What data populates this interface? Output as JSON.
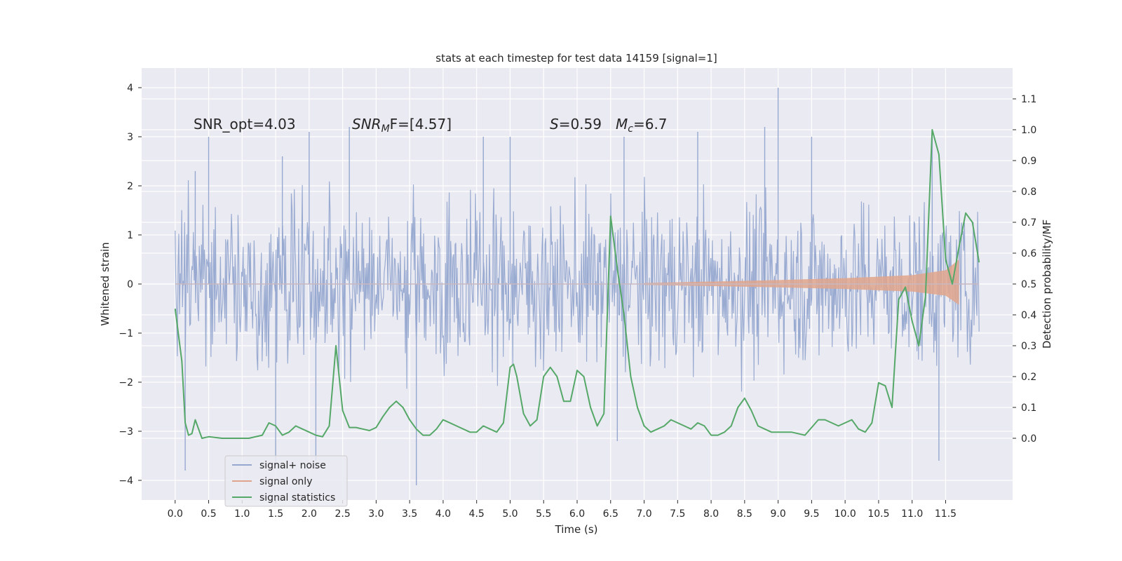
{
  "chart_data": {
    "type": "line",
    "title": "stats at each timestep for test data 14159 [signal=1]",
    "xlabel": "Time (s)",
    "ylabel": "Whitened strain",
    "ylabel_right": "Detection probability/MF",
    "xlim": [
      -0.5,
      12.5
    ],
    "ylim": [
      -4.4,
      4.4
    ],
    "ylim_right": [
      -0.2,
      1.2
    ],
    "x_ticks": [
      "0.0",
      "0.5",
      "1.0",
      "1.5",
      "2.0",
      "2.5",
      "3.0",
      "3.5",
      "4.0",
      "4.5",
      "5.0",
      "5.5",
      "6.0",
      "6.5",
      "7.0",
      "7.5",
      "8.0",
      "8.5",
      "9.0",
      "9.5",
      "10.0",
      "10.5",
      "11.0",
      "11.5"
    ],
    "y_ticks": [
      "4",
      "3",
      "2",
      "1",
      "0",
      "−1",
      "−2",
      "−3",
      "−4"
    ],
    "y_right_ticks": [
      "1.1",
      "1.0",
      "0.9",
      "0.8",
      "0.7",
      "0.6",
      "0.5",
      "0.4",
      "0.3",
      "0.2",
      "0.1",
      "0.0"
    ],
    "grid": true,
    "legend_placement": "lower-left",
    "annotations": {
      "snr_opt": "SNR_opt=4.03",
      "snr_mf_main": "SNR",
      "snr_mf_sub": "M",
      "snr_mf_rest": "F=[4.57]",
      "s_var": "S",
      "s_rest": "=0.59",
      "mc_var": "M",
      "mc_sub": "c",
      "mc_rest": "=6.7"
    },
    "series": [
      {
        "name": "signal+ noise",
        "color": "#96a8d0",
        "description_range": "noise spanning approx [-4.1, 4.0] from 0.0 to 12.0 s",
        "peaks": [
          {
            "x": 0.3,
            "y": 2.3
          },
          {
            "x": 0.5,
            "y": 3.0
          },
          {
            "x": 1.6,
            "y": 2.6
          },
          {
            "x": 2.0,
            "y": 3.1
          },
          {
            "x": 2.6,
            "y": 3.2
          },
          {
            "x": 4.6,
            "y": 3.0
          },
          {
            "x": 5.0,
            "y": 3.0
          },
          {
            "x": 6.7,
            "y": 3.0
          },
          {
            "x": 7.8,
            "y": 3.1
          },
          {
            "x": 8.8,
            "y": 3.2
          },
          {
            "x": 9.0,
            "y": 4.0
          },
          {
            "x": 9.5,
            "y": 3.0
          },
          {
            "x": 11.3,
            "y": 3.0
          }
        ],
        "troughs": [
          {
            "x": 0.15,
            "y": -3.8
          },
          {
            "x": 1.5,
            "y": -3.7
          },
          {
            "x": 2.1,
            "y": -3.6
          },
          {
            "x": 3.6,
            "y": -4.1
          },
          {
            "x": 6.6,
            "y": -3.2
          },
          {
            "x": 11.4,
            "y": -3.6
          }
        ]
      },
      {
        "name": "signal only",
        "color": "#e0a48c",
        "envelope": [
          {
            "x": 7.0,
            "y": 0.02
          },
          {
            "x": 9.0,
            "y": 0.08
          },
          {
            "x": 10.0,
            "y": 0.12
          },
          {
            "x": 11.0,
            "y": 0.18
          },
          {
            "x": 11.5,
            "y": 0.28
          },
          {
            "x": 11.7,
            "y": 0.5
          }
        ]
      },
      {
        "name": "signal statistics",
        "color": "#55a868",
        "axis": "right",
        "x": [
          0.0,
          0.1,
          0.15,
          0.2,
          0.25,
          0.3,
          0.4,
          0.5,
          0.7,
          0.9,
          1.1,
          1.3,
          1.4,
          1.5,
          1.6,
          1.7,
          1.8,
          1.9,
          2.0,
          2.1,
          2.2,
          2.3,
          2.4,
          2.5,
          2.6,
          2.7,
          2.8,
          2.9,
          3.0,
          3.1,
          3.2,
          3.3,
          3.4,
          3.5,
          3.6,
          3.7,
          3.8,
          3.9,
          4.0,
          4.2,
          4.4,
          4.5,
          4.6,
          4.7,
          4.8,
          4.9,
          5.0,
          5.05,
          5.1,
          5.2,
          5.3,
          5.4,
          5.5,
          5.6,
          5.7,
          5.8,
          5.9,
          6.0,
          6.1,
          6.2,
          6.3,
          6.4,
          6.5,
          6.6,
          6.7,
          6.8,
          6.9,
          7.0,
          7.1,
          7.2,
          7.3,
          7.4,
          7.5,
          7.6,
          7.7,
          7.8,
          7.9,
          8.0,
          8.1,
          8.2,
          8.3,
          8.4,
          8.5,
          8.6,
          8.7,
          8.8,
          8.9,
          9.0,
          9.2,
          9.4,
          9.6,
          9.7,
          9.8,
          9.9,
          10.0,
          10.1,
          10.2,
          10.3,
          10.4,
          10.5,
          10.6,
          10.7,
          10.8,
          10.9,
          11.0,
          11.1,
          11.2,
          11.3,
          11.4,
          11.5,
          11.6,
          11.7,
          11.8,
          11.9,
          12.0
        ],
        "y": [
          0.42,
          0.25,
          0.05,
          0.01,
          0.015,
          0.06,
          0.0,
          0.005,
          0.0,
          0.0,
          0.0,
          0.01,
          0.05,
          0.04,
          0.01,
          0.02,
          0.04,
          0.03,
          0.02,
          0.01,
          0.005,
          0.04,
          0.3,
          0.09,
          0.035,
          0.035,
          0.03,
          0.025,
          0.035,
          0.07,
          0.1,
          0.12,
          0.1,
          0.06,
          0.03,
          0.01,
          0.01,
          0.03,
          0.06,
          0.04,
          0.02,
          0.02,
          0.04,
          0.03,
          0.02,
          0.05,
          0.23,
          0.24,
          0.2,
          0.08,
          0.04,
          0.06,
          0.2,
          0.23,
          0.2,
          0.12,
          0.12,
          0.22,
          0.2,
          0.1,
          0.04,
          0.08,
          0.72,
          0.55,
          0.4,
          0.2,
          0.1,
          0.04,
          0.02,
          0.03,
          0.04,
          0.06,
          0.05,
          0.04,
          0.03,
          0.05,
          0.04,
          0.01,
          0.01,
          0.02,
          0.04,
          0.1,
          0.13,
          0.09,
          0.04,
          0.03,
          0.02,
          0.02,
          0.02,
          0.01,
          0.06,
          0.06,
          0.05,
          0.04,
          0.05,
          0.06,
          0.03,
          0.02,
          0.05,
          0.18,
          0.17,
          0.1,
          0.45,
          0.49,
          0.38,
          0.3,
          0.46,
          1.0,
          0.92,
          0.58,
          0.5,
          0.62,
          0.73,
          0.7,
          0.57
        ]
      }
    ]
  }
}
